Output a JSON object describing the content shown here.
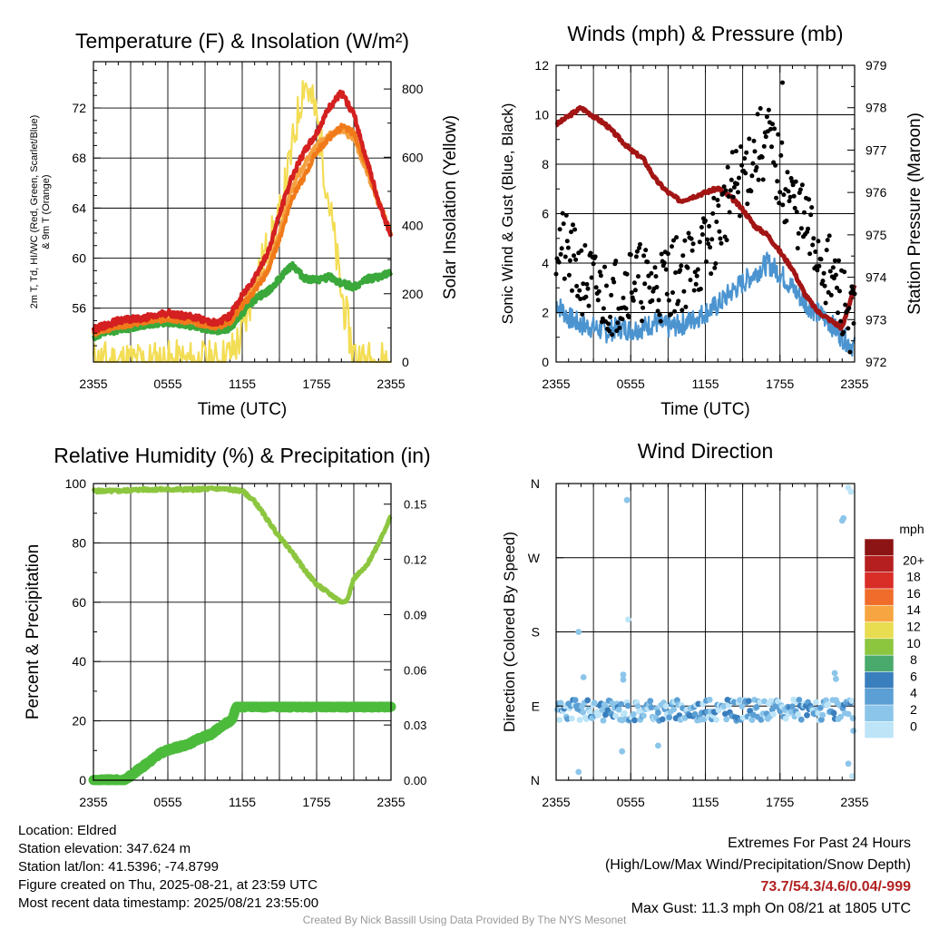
{
  "colors": {
    "t2m": "#d42020",
    "td": "#3aa83a",
    "hi_wc": "#f07a1a",
    "t9m": "#f5a040",
    "solar": "#f3dd55",
    "pressure": "#a31515",
    "wind": "#4b94d0",
    "gust": "#000000",
    "rh": "#8cc63f",
    "precip": "#4cbb3c"
  },
  "chart_data": [
    {
      "type": "line",
      "title": "Temperature (F) & Insolation (W/m²)",
      "xlabel": "Time (UTC)",
      "ylabel": "2m T, Td, HI/WC (Red, Green, Scarlet/Blue) & 9m T (Orange)",
      "ylabel_line1": "2m T, Td, HI/WC (Red, Green, Scarlet/Blue)",
      "ylabel_line2": "& 9m T (Orange)",
      "ylabel_right": "Solar Insolation (Yellow)",
      "x_ticks": [
        "2355",
        "0555",
        "1155",
        "1755",
        "2355"
      ],
      "y_ticks": [
        56,
        60,
        64,
        68,
        72
      ],
      "y_ticks_right": [
        0,
        200,
        400,
        600,
        800
      ],
      "ylim": [
        51.7,
        75.7
      ],
      "ylim_right": [
        0,
        880
      ],
      "x_hours": [
        0,
        2,
        4,
        6,
        8,
        10,
        11,
        12,
        13,
        14,
        15,
        16,
        17,
        18,
        19,
        20,
        21,
        22,
        23,
        24
      ],
      "series": [
        {
          "name": "2m T",
          "color_key": "t2m",
          "values": [
            54.3,
            55.0,
            55.2,
            55.6,
            55.3,
            54.8,
            55.4,
            57.0,
            58.5,
            60.2,
            63.5,
            66.5,
            68.5,
            70.0,
            72.0,
            73.2,
            71.5,
            68.0,
            64.5,
            61.8
          ]
        },
        {
          "name": "Td",
          "color_key": "td",
          "values": [
            53.7,
            54.3,
            54.6,
            54.9,
            54.6,
            54.2,
            54.4,
            55.6,
            56.7,
            57.3,
            58.3,
            59.5,
            58.4,
            58.2,
            58.5,
            58.0,
            57.7,
            58.3,
            58.5,
            58.8
          ]
        },
        {
          "name": "HI/WC",
          "color_key": "hi_wc",
          "values": [
            54.0,
            54.6,
            54.9,
            55.2,
            54.9,
            54.5,
            54.9,
            56.2,
            57.4,
            58.8,
            61.5,
            64.8,
            66.5,
            68.5,
            69.6,
            70.5,
            70.0,
            67.5,
            64.5,
            62.0
          ]
        },
        {
          "name": "9m T",
          "color_key": "t9m",
          "values": [
            54.1,
            54.7,
            55.0,
            55.4,
            55.0,
            54.6,
            55.1,
            56.5,
            57.8,
            59.0,
            62.0,
            65.5,
            67.5,
            69.0,
            69.8,
            70.3,
            69.5,
            67.0,
            64.3,
            62.0
          ]
        },
        {
          "name": "Solar Insolation",
          "color_key": "solar",
          "axis": "right",
          "values": [
            0,
            0,
            0,
            0,
            0,
            0,
            20,
            80,
            230,
            330,
            420,
            620,
            830,
            720,
            470,
            200,
            20,
            0,
            0,
            0
          ]
        }
      ]
    },
    {
      "type": "line",
      "title": "Winds (mph) & Pressure (mb)",
      "xlabel": "Time (UTC)",
      "ylabel": "Sonic Wind & Gust (Blue, Black)",
      "ylabel_right": "Station Pressure (Maroon)",
      "x_ticks": [
        "2355",
        "0555",
        "1155",
        "1755",
        "2355"
      ],
      "y_ticks": [
        0,
        2,
        4,
        6,
        8,
        10,
        12
      ],
      "y_ticks_right": [
        972,
        973,
        974,
        975,
        976,
        977,
        978,
        979
      ],
      "ylim": [
        0,
        12
      ],
      "ylim_right": [
        972,
        979
      ],
      "x_hours": [
        0,
        1,
        2,
        3,
        4,
        5,
        6,
        7,
        8,
        9,
        10,
        11,
        12,
        13,
        14,
        15,
        16,
        17,
        18,
        19,
        20,
        21,
        22,
        23,
        24
      ],
      "series": [
        {
          "name": "Station Pressure",
          "color_key": "pressure",
          "axis": "right",
          "values": [
            977.6,
            977.8,
            978.0,
            977.8,
            977.6,
            977.3,
            977.0,
            976.8,
            976.3,
            976.0,
            975.8,
            975.9,
            976.0,
            976.1,
            975.9,
            975.6,
            975.2,
            975.0,
            974.6,
            974.2,
            973.6,
            973.2,
            973.0,
            972.8,
            973.8
          ]
        },
        {
          "name": "Sonic Wind",
          "color_key": "wind",
          "values": [
            2.4,
            1.8,
            1.5,
            1.4,
            1.2,
            1.4,
            1.3,
            1.4,
            1.6,
            1.4,
            1.5,
            1.7,
            2.0,
            2.3,
            2.8,
            3.2,
            3.6,
            4.0,
            3.6,
            3.0,
            2.4,
            2.0,
            1.6,
            1.0,
            0.6
          ]
        },
        {
          "name": "Gust",
          "color_key": "gust",
          "type": "scatter",
          "note_x_end": 24,
          "values": [
            5.0,
            4.2,
            3.5,
            3.0,
            2.6,
            2.8,
            3.5,
            3.2,
            3.0,
            3.4,
            3.6,
            4.0,
            4.5,
            5.5,
            6.8,
            7.5,
            8.5,
            9.0,
            7.5,
            6.5,
            5.5,
            4.5,
            3.5,
            2.5,
            1.5
          ]
        }
      ],
      "max_gust": {
        "value": 11.3,
        "hour": 18.2
      }
    },
    {
      "type": "line",
      "title": "Relative Humidity (%) & Precipitation (in)",
      "xlabel": "",
      "ylabel": "Percent & Precipitation",
      "x_ticks": [
        "2355",
        "0555",
        "1155",
        "1755",
        "2355"
      ],
      "y_ticks": [
        0,
        20,
        40,
        60,
        80,
        100
      ],
      "y_ticks_right": [
        "0.00",
        "0.03",
        "0.06",
        "0.09",
        "0.12",
        "0.15"
      ],
      "ylim": [
        0,
        100
      ],
      "ylim_right": [
        0,
        0.1612
      ],
      "series": [
        {
          "name": "Relative Humidity",
          "color_key": "rh",
          "x_hours": [
            0,
            2,
            4,
            6,
            8,
            10,
            11,
            12,
            13,
            14,
            15,
            16,
            17,
            18,
            19,
            20,
            20.5,
            21,
            22,
            23,
            24
          ],
          "values": [
            97.5,
            97.5,
            98,
            98,
            98,
            98.3,
            98,
            97.5,
            94,
            88,
            82,
            77,
            71,
            66,
            63,
            60,
            61,
            68,
            72,
            80,
            89
          ]
        },
        {
          "name": "Precipitation",
          "color_key": "precip",
          "axis": "right",
          "x_hours": [
            0,
            2.5,
            3.5,
            4.5,
            5.5,
            6.5,
            7.5,
            8.5,
            9.5,
            10.5,
            11.2,
            11.5,
            24
          ],
          "values": [
            0.0,
            0.0,
            0.005,
            0.01,
            0.015,
            0.0175,
            0.019,
            0.0225,
            0.025,
            0.03,
            0.033,
            0.04,
            0.04
          ]
        }
      ]
    },
    {
      "type": "scatter",
      "title": "Wind Direction",
      "ylabel": "Direction (Colored By Speed)",
      "x_ticks": [
        "2355",
        "0555",
        "1155",
        "1755",
        "2355"
      ],
      "y_ticks": [
        "N",
        "E",
        "S",
        "W",
        "N"
      ],
      "ylim": [
        0,
        360
      ],
      "legend": {
        "title": "mph",
        "labels": [
          "0",
          "2",
          "4",
          "6",
          "8",
          "10",
          "12",
          "14",
          "16",
          "18",
          "20+"
        ],
        "colors": [
          "#bde4f7",
          "#8cc5ea",
          "#5b9fd4",
          "#3a7fbd",
          "#4aa96c",
          "#8cc63f",
          "#e8dc50",
          "#f7a540",
          "#ef6c2a",
          "#d92d27",
          "#b51f1f",
          "#8c1414"
        ]
      },
      "band_center_deg": 85,
      "outliers": [
        {
          "hour": 1.8,
          "deg": 180,
          "speed": 1
        },
        {
          "hour": 1.8,
          "deg": 10,
          "speed": 1
        },
        {
          "hour": 5.7,
          "deg": 340,
          "speed": 1
        },
        {
          "hour": 5.8,
          "deg": 195,
          "speed": 0
        },
        {
          "hour": 5.4,
          "deg": 128,
          "speed": 1
        },
        {
          "hour": 5.4,
          "deg": 122,
          "speed": 1
        },
        {
          "hour": 5.3,
          "deg": 35,
          "speed": 1
        },
        {
          "hour": 8.2,
          "deg": 42,
          "speed": 1
        },
        {
          "hour": 2.2,
          "deg": 125,
          "speed": 1
        },
        {
          "hour": 23.0,
          "deg": 315,
          "speed": 1
        },
        {
          "hour": 23.1,
          "deg": 318,
          "speed": 1
        },
        {
          "hour": 23.5,
          "deg": 355,
          "speed": 0
        },
        {
          "hour": 23.7,
          "deg": 350,
          "speed": 0
        },
        {
          "hour": 23.5,
          "deg": 20,
          "speed": 1
        },
        {
          "hour": 23.8,
          "deg": 5,
          "speed": 0
        },
        {
          "hour": 22.4,
          "deg": 130,
          "speed": 1
        },
        {
          "hour": 22.5,
          "deg": 123,
          "speed": 1
        },
        {
          "hour": 23.9,
          "deg": 60,
          "speed": 1
        }
      ]
    }
  ],
  "info": {
    "location": "Location: Eldred",
    "elevation": "Station elevation: 347.624 m",
    "latlon": "Station lat/lon: 41.5396; -74.8799",
    "created": "Figure created on Thu, 2025-08-21, at 23:59 UTC",
    "recent": "Most recent data timestamp: 2025/08/21 23:55:00"
  },
  "extremes": {
    "header": "Extremes For Past 24 Hours",
    "fields": "(High/Low/Max Wind/Precipitation/Snow Depth)",
    "values": "73.7/54.3/4.6/0.04/-999",
    "max_gust": "Max Gust: 11.3 mph On 08/21 at 1805 UTC"
  },
  "credit": "Created By Nick Bassill Using Data Provided By The NYS Mesonet"
}
